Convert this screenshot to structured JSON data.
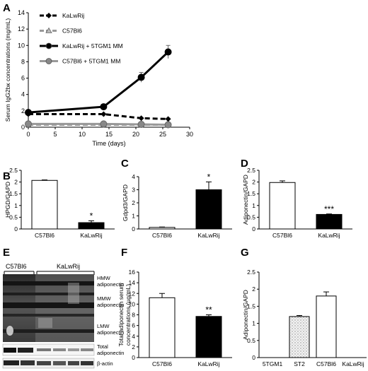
{
  "panel_letters": {
    "A": "A",
    "B": "B",
    "C": "C",
    "D": "D",
    "E": "E",
    "F": "F",
    "G": "G"
  },
  "chart_data": [
    {
      "id": "A",
      "type": "line",
      "xlabel": "Time (days)",
      "ylabel": "Serum IgG2bκ concentrations (mg/mL)",
      "xlim": [
        0,
        30
      ],
      "ylim": [
        0,
        14
      ],
      "xticks": [
        "0",
        "5",
        "10",
        "15",
        "20",
        "25",
        "30"
      ],
      "yticks": [
        "0",
        "2",
        "4",
        "6",
        "8",
        "10",
        "12",
        "14"
      ],
      "legend_position": "top-left",
      "series": [
        {
          "name": "KaLwRij",
          "style": "dashed",
          "color": "#000000",
          "marker": "diamond",
          "x": [
            0,
            14,
            21,
            26
          ],
          "y": [
            1.6,
            1.6,
            1.1,
            1.0
          ],
          "err": [
            0,
            0.1,
            0,
            0.1
          ]
        },
        {
          "name": "C57Bl6",
          "style": "dashed",
          "color": "#999999",
          "marker": "triangle",
          "x": [
            0,
            14,
            21,
            26
          ],
          "y": [
            0.3,
            0.3,
            0.3,
            0.3
          ],
          "err": [
            0,
            0,
            0,
            0
          ]
        },
        {
          "name": "KaLwRij + 5TGM1 MM",
          "style": "solid",
          "color": "#000000",
          "marker": "circle",
          "x": [
            0,
            14,
            21,
            26
          ],
          "y": [
            1.8,
            2.5,
            6.1,
            9.2
          ],
          "err": [
            0.2,
            0.3,
            0.6,
            0.8
          ]
        },
        {
          "name": "C57Bl6 + 5TGM1 MM",
          "style": "solid",
          "color": "#999999",
          "marker": "circle",
          "x": [
            0,
            14,
            21,
            26
          ],
          "y": [
            0.4,
            0.4,
            0.35,
            0.3
          ],
          "err": [
            0,
            0,
            0,
            0
          ]
        }
      ]
    },
    {
      "id": "B",
      "type": "bar",
      "ylabel": "HPGD/GAPD",
      "ylim": [
        0,
        2.5
      ],
      "yticks": [
        "0",
        "0.5",
        "1",
        "1.5",
        "2",
        "2.5"
      ],
      "categories": [
        "C57Bl6",
        "KaLwRij"
      ],
      "values": [
        2.07,
        0.27
      ],
      "err": [
        0.02,
        0.08
      ],
      "fills": [
        "#ffffff",
        "#000000"
      ],
      "significance": [
        "",
        "*"
      ]
    },
    {
      "id": "C",
      "type": "bar",
      "ylabel": "Gdpd3/GAPD",
      "ylim": [
        0,
        4
      ],
      "yticks": [
        "0",
        "1",
        "2",
        "3",
        "4"
      ],
      "categories": [
        "C57Bl6",
        "KaLwRij"
      ],
      "values": [
        0.12,
        3.0
      ],
      "err": [
        0.03,
        0.6
      ],
      "fills": [
        "#ffffff",
        "#000000"
      ],
      "significance": [
        "",
        "*"
      ]
    },
    {
      "id": "D",
      "type": "bar",
      "ylabel": "Adiponectin/GAPD",
      "ylim": [
        0,
        2.5
      ],
      "yticks": [
        "0",
        "0.5",
        "1",
        "1.5",
        "2",
        "2.5"
      ],
      "categories": [
        "C57Bl6",
        "KaLwRij"
      ],
      "values": [
        1.98,
        0.62
      ],
      "err": [
        0.07,
        0.02
      ],
      "fills": [
        "#ffffff",
        "#000000"
      ],
      "significance": [
        "",
        "***"
      ]
    },
    {
      "id": "F",
      "type": "bar",
      "ylabel": "Total adiponectin serum concentrations (µg/mL)",
      "ylim": [
        0,
        16
      ],
      "yticks": [
        "0",
        "2",
        "4",
        "6",
        "8",
        "10",
        "12",
        "14",
        "16"
      ],
      "categories": [
        "C57Bl6",
        "KaLwRij"
      ],
      "values": [
        11.2,
        7.7
      ],
      "err": [
        0.8,
        0.3
      ],
      "fills": [
        "#ffffff",
        "#000000"
      ],
      "significance": [
        "",
        "**"
      ]
    },
    {
      "id": "G",
      "type": "bar",
      "ylabel": "Adiponectin/GAPD",
      "ylim": [
        0,
        2.5
      ],
      "yticks": [
        "0",
        "0.5",
        "1",
        "1.5",
        "2",
        "2.5"
      ],
      "categories": [
        "5TGM1",
        "ST2",
        "C57Bl6",
        "KaLwRij"
      ],
      "values": [
        0,
        1.2,
        1.8,
        0
      ],
      "err": [
        0,
        0.03,
        0.12,
        0
      ],
      "fills": [
        "#ffffff",
        "#dddddd",
        "#ffffff",
        "#ffffff"
      ],
      "significance": [
        "",
        "",
        "",
        ""
      ]
    }
  ],
  "blot": {
    "group_labels": [
      "C57Bl6",
      "KaLwRij"
    ],
    "band_labels": [
      {
        "id": "hmw",
        "lines": [
          "HMW",
          "adiponectin"
        ]
      },
      {
        "id": "mmw",
        "lines": [
          "MMW",
          "adiponectin"
        ]
      },
      {
        "id": "lmw",
        "lines": [
          "LMW",
          "adiponectin"
        ]
      },
      {
        "id": "total",
        "lines": [
          "Total",
          "adiponectin"
        ]
      },
      {
        "id": "actin",
        "lines": [
          "β-actin"
        ]
      }
    ]
  }
}
